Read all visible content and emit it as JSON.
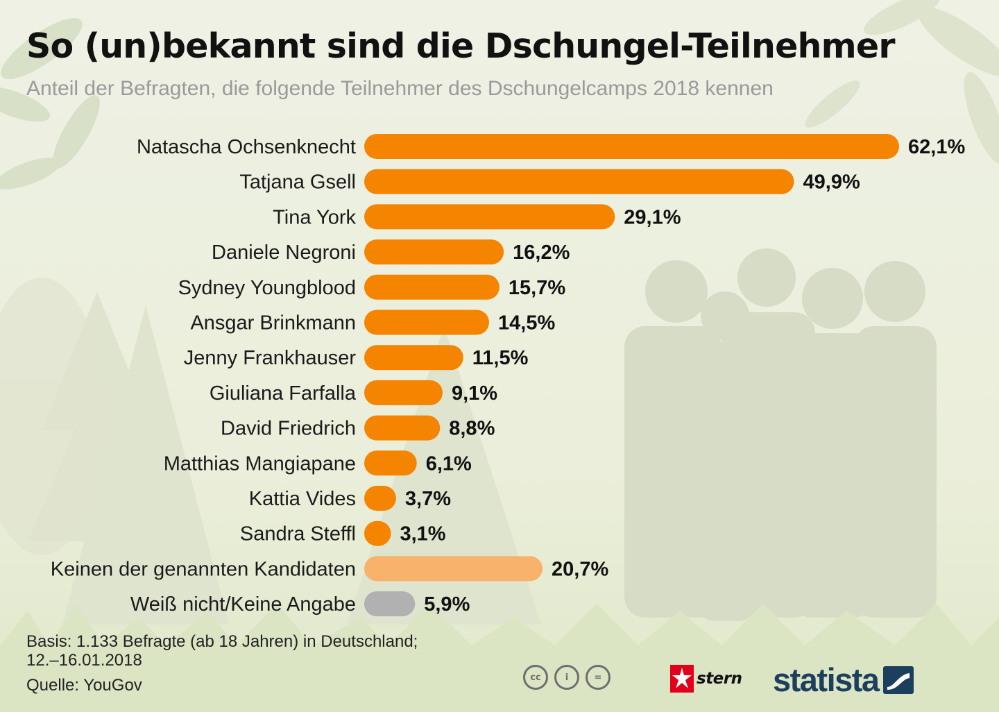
{
  "title": "So (un)bekannt sind die Dschungel-Teilnehmer",
  "subtitle": "Anteil der Befragten, die folgende Teilnehmer des Dschungelcamps 2018 kennen",
  "chart_data": {
    "type": "bar",
    "orientation": "horizontal",
    "categories": [
      "Natascha Ochsenknecht",
      "Tatjana Gsell",
      "Tina York",
      "Daniele Negroni",
      "Sydney Youngblood",
      "Ansgar Brinkmann",
      "Jenny Frankhauser",
      "Giuliana Farfalla",
      "David Friedrich",
      "Matthias Mangiapane",
      "Kattia Vides",
      "Sandra Steffl",
      "Keinen der genannten Kandidaten",
      "Weiß nicht/Keine Angabe"
    ],
    "values": [
      62.1,
      49.9,
      29.1,
      16.2,
      15.7,
      14.5,
      11.5,
      9.1,
      8.8,
      6.1,
      3.7,
      3.1,
      20.7,
      5.9
    ],
    "value_labels": [
      "62,1%",
      "49,9%",
      "29,1%",
      "16,2%",
      "15,7%",
      "14,5%",
      "11,5%",
      "9,1%",
      "8,8%",
      "6,1%",
      "3,7%",
      "3,1%",
      "20,7%",
      "5,9%"
    ],
    "bar_colors": [
      "#f58400",
      "#f58400",
      "#f58400",
      "#f58400",
      "#f58400",
      "#f58400",
      "#f58400",
      "#f58400",
      "#f58400",
      "#f58400",
      "#f58400",
      "#f58400",
      "#f9b26b",
      "#b1b1b1"
    ],
    "xlim": [
      0,
      62.1
    ],
    "grid": false,
    "legend": "none"
  },
  "footer": {
    "basis_line1": "Basis: 1.133 Befragte (ab 18 Jahren) in Deutschland;",
    "basis_line2": "12.–16.01.2018",
    "source": "Quelle: YouGov",
    "cc_icons": [
      "cc",
      "by",
      "nd"
    ],
    "cc_icon_labels": [
      "cc",
      "i",
      "="
    ],
    "publisher": "stern",
    "brand": "statista"
  }
}
